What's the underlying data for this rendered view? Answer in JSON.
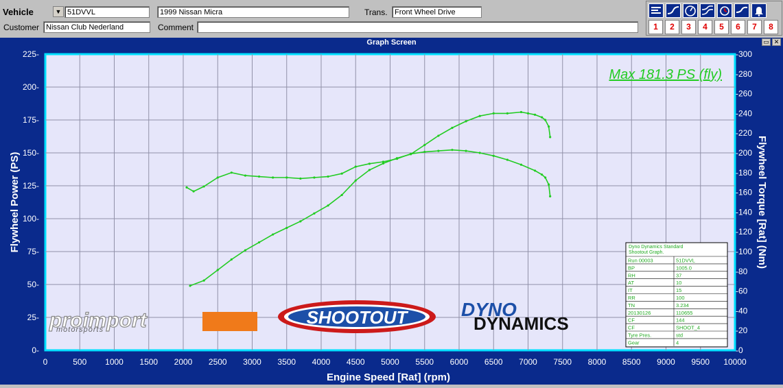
{
  "header": {
    "vehicle_label": "Vehicle",
    "vehicle_id": "51DVVL",
    "vehicle_name": "1999 Nissan Micra",
    "trans_label": "Trans.",
    "trans_value": "Front Wheel Drive",
    "customer_label": "Customer",
    "customer_value": "Nissan Club Nederland",
    "comment_label": "Comment",
    "comment_value": ""
  },
  "toolbar": {
    "icons": [
      "list-icon",
      "power-curve-icon",
      "gauge-icon",
      "curves-icon",
      "alarm-clock-icon",
      "bell-icon"
    ],
    "number_buttons": [
      "1",
      "2",
      "3",
      "4",
      "5",
      "6",
      "7",
      "8"
    ]
  },
  "window": {
    "title": "Graph Screen",
    "restore_glyph": "▭",
    "close_glyph": "✕"
  },
  "colors": {
    "plot_bg": "#e6e6fa",
    "frame": "#0a2a8c",
    "curve": "#22cc22",
    "border_cyan": "#00e0ff"
  },
  "chart_data": {
    "type": "line",
    "xlabel": "Engine Speed [Rat] (rpm)",
    "ylabel": "Flywheel Power (PS)",
    "y2label": "Flywheel Torque [Rat] (Nm)",
    "xlim": [
      0,
      10000
    ],
    "ylim": [
      0,
      225
    ],
    "y2lim": [
      0,
      300
    ],
    "x_ticks": [
      0,
      500,
      1000,
      1500,
      2000,
      2500,
      3000,
      3500,
      4000,
      4500,
      5000,
      5500,
      6000,
      6500,
      7000,
      7500,
      8000,
      8500,
      9000,
      9500,
      10000
    ],
    "y_ticks": [
      0,
      25,
      50,
      75,
      100,
      125,
      150,
      175,
      200,
      225
    ],
    "y2_ticks": [
      0,
      20,
      40,
      60,
      80,
      100,
      120,
      140,
      160,
      180,
      200,
      220,
      240,
      260,
      280,
      300
    ],
    "grid": true,
    "annotation": "Max 181.3 PS (fly)",
    "series": [
      {
        "axis": "left",
        "x": [
          2100,
          2300,
          2500,
          2700,
          2900,
          3100,
          3300,
          3500,
          3700,
          3900,
          4100,
          4300,
          4500,
          4700,
          4900,
          5100,
          5300,
          5500,
          5700,
          5900,
          6100,
          6300,
          6500,
          6700,
          6900,
          7000,
          7100,
          7200,
          7250,
          7300,
          7320
        ],
        "values": [
          49,
          53,
          61,
          69,
          76,
          82,
          88,
          93,
          98,
          104,
          110,
          118,
          129,
          137,
          142,
          146,
          149,
          156,
          163,
          169,
          174,
          178,
          180,
          180,
          181,
          180,
          179,
          177,
          175,
          170,
          162
        ]
      },
      {
        "axis": "right",
        "x": [
          2050,
          2150,
          2300,
          2500,
          2700,
          2900,
          3100,
          3300,
          3500,
          3700,
          3900,
          4100,
          4300,
          4500,
          4700,
          4900,
          5100,
          5300,
          5500,
          5700,
          5900,
          6100,
          6300,
          6500,
          6700,
          6900,
          7100,
          7200,
          7250,
          7300,
          7320
        ],
        "values": [
          165,
          161,
          166,
          175,
          180,
          177,
          176,
          175,
          175,
          174,
          175,
          176,
          179,
          186,
          189,
          191,
          194,
          199,
          201,
          202,
          203,
          202,
          200,
          197,
          193,
          188,
          182,
          178,
          175,
          168,
          156
        ]
      }
    ]
  },
  "logos": {
    "proimport_main": "proimport",
    "proimport_sub": "motorsports",
    "shootout": "SHOOTOUT",
    "dyno_line1": "DYNO",
    "dyno_line2": "DYNAMICS"
  },
  "info_table": {
    "title_line1": "Dyno Dynamics Standard",
    "title_line2": "Shootout Graph.",
    "rows": [
      [
        "Run 00003",
        "51DVVL"
      ],
      [
        "BP",
        "1005.0"
      ],
      [
        "RH",
        "37"
      ],
      [
        "AT",
        "10"
      ],
      [
        "IT",
        "15"
      ],
      [
        "RR",
        "100"
      ],
      [
        "TN",
        "3.234"
      ],
      [
        "20130126",
        "110655"
      ],
      [
        "CF",
        "144"
      ],
      [
        "CF",
        "SHOOT_4"
      ],
      [
        "Tyre Pres.",
        "std"
      ],
      [
        "Gear",
        "4"
      ]
    ]
  }
}
